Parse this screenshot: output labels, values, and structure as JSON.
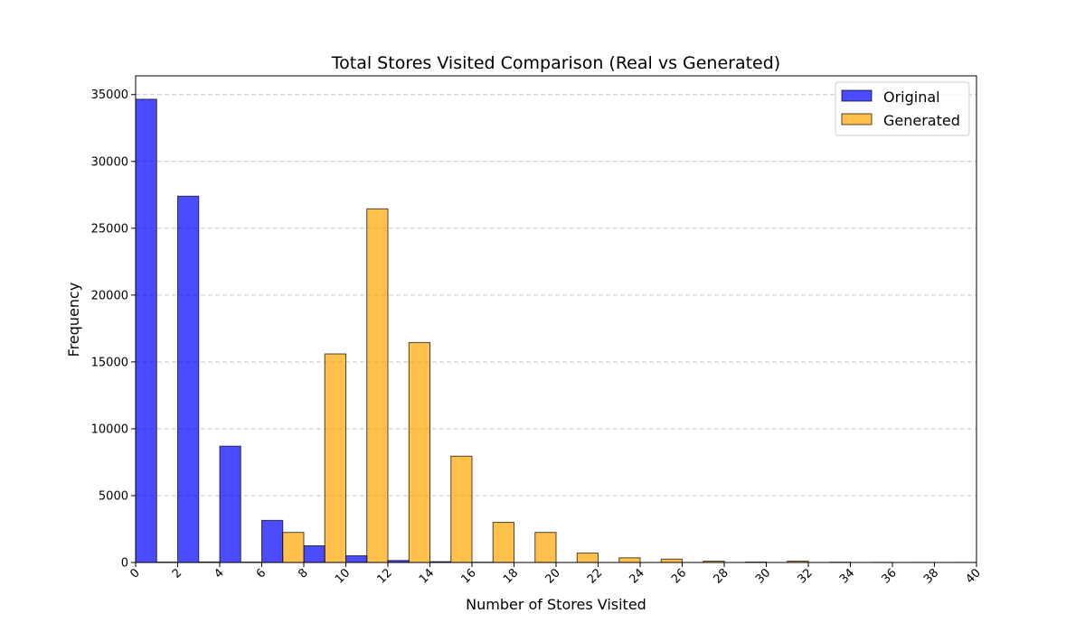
{
  "chart_data": {
    "type": "bar",
    "title": "Total Stores Visited Comparison (Real vs Generated)",
    "xlabel": "Number of Stores Visited",
    "ylabel": "Frequency",
    "xlim": [
      0,
      40
    ],
    "ylim": [
      0,
      36400
    ],
    "x_ticks": [
      0,
      2,
      4,
      6,
      8,
      10,
      12,
      14,
      16,
      18,
      20,
      22,
      24,
      26,
      28,
      30,
      32,
      34,
      36,
      38,
      40
    ],
    "y_ticks": [
      0,
      5000,
      10000,
      15000,
      20000,
      25000,
      30000,
      35000
    ],
    "grid": "y-dashed",
    "legend_position": "top-right",
    "bin_width": 2,
    "bin_starts": [
      0,
      2,
      4,
      6,
      8,
      10,
      12,
      14,
      16,
      18,
      20,
      22,
      24,
      26,
      28,
      30,
      32,
      34,
      36,
      38
    ],
    "series": [
      {
        "name": "Original",
        "color": "#0000ff",
        "opacity": 0.7,
        "values": [
          34650,
          27400,
          8700,
          3150,
          1250,
          500,
          150,
          60,
          20,
          0,
          0,
          0,
          0,
          0,
          0,
          0,
          0,
          0,
          0,
          0
        ]
      },
      {
        "name": "Generated",
        "color": "#ffa500",
        "opacity": 0.7,
        "values": [
          30,
          40,
          30,
          2250,
          15600,
          26450,
          16450,
          7950,
          3000,
          2250,
          700,
          350,
          250,
          100,
          30,
          100,
          20,
          10,
          5,
          5
        ]
      }
    ]
  }
}
